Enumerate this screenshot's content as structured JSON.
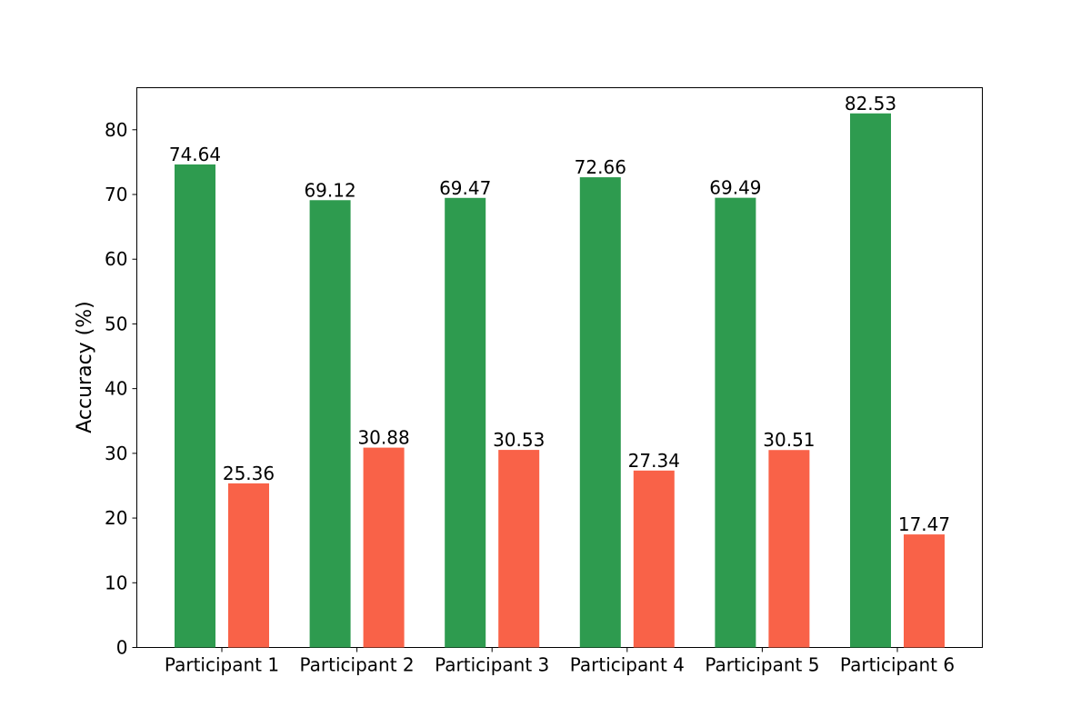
{
  "chart_data": {
    "type": "bar",
    "title": "",
    "xlabel": "",
    "ylabel": "Accuracy (%)",
    "ylim": [
      0,
      86.5
    ],
    "yticks": [
      0,
      10,
      20,
      30,
      40,
      50,
      60,
      70,
      80
    ],
    "categories": [
      "Participant 1",
      "Participant 2",
      "Participant 3",
      "Participant 4",
      "Participant 5",
      "Participant 6"
    ],
    "series": [
      {
        "color": "#2e9b4f",
        "values": [
          74.64,
          69.12,
          69.47,
          72.66,
          69.49,
          82.53
        ]
      },
      {
        "color": "#f96248",
        "values": [
          25.36,
          30.88,
          30.53,
          27.34,
          30.51,
          17.47
        ]
      }
    ],
    "data_labels": [
      [
        "74.64",
        "69.12",
        "69.47",
        "72.66",
        "69.49",
        "82.53"
      ],
      [
        "25.36",
        "30.88",
        "30.53",
        "27.34",
        "30.51",
        "17.47"
      ]
    ],
    "grid": false,
    "legend": "none"
  }
}
